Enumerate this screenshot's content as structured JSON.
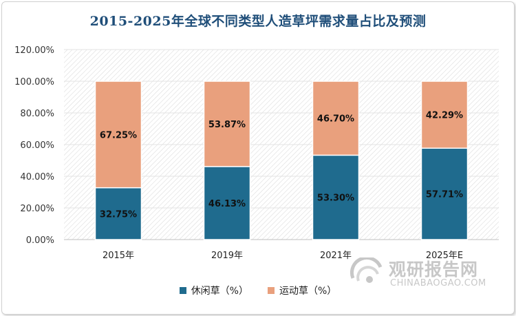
{
  "title": "2015-2025年全球不同类型人造草坪需求量占比及预测",
  "watermark": {
    "cn": "观研报告网",
    "en": "CHINABAOGAO.COM"
  },
  "colors": {
    "leisure": "#1f6b8e",
    "sports": "#e9a07d",
    "title": "#1f4e79"
  },
  "chart_data": {
    "type": "bar",
    "stacked": true,
    "title": "2015-2025年全球不同类型人造草坪需求量占比及预测",
    "categories": [
      "2015年",
      "2019年",
      "2021年",
      "2025年E"
    ],
    "series": [
      {
        "name": "休闲草（%）",
        "values": [
          32.75,
          46.13,
          53.3,
          57.71
        ],
        "labels": [
          "32.75%",
          "46.13%",
          "53.30%",
          "57.71%"
        ]
      },
      {
        "name": "运动草（%）",
        "values": [
          67.25,
          53.87,
          46.7,
          42.29
        ],
        "labels": [
          "67.25%",
          "53.87%",
          "46.70%",
          "42.29%"
        ]
      }
    ],
    "ylim": [
      0,
      120
    ],
    "yticks": [
      0,
      20,
      40,
      60,
      80,
      100,
      120
    ],
    "ytick_labels": [
      "0.00%",
      "20.00%",
      "40.00%",
      "60.00%",
      "80.00%",
      "100.00%",
      "120.00%"
    ],
    "grid": true,
    "legend": "bottom"
  }
}
